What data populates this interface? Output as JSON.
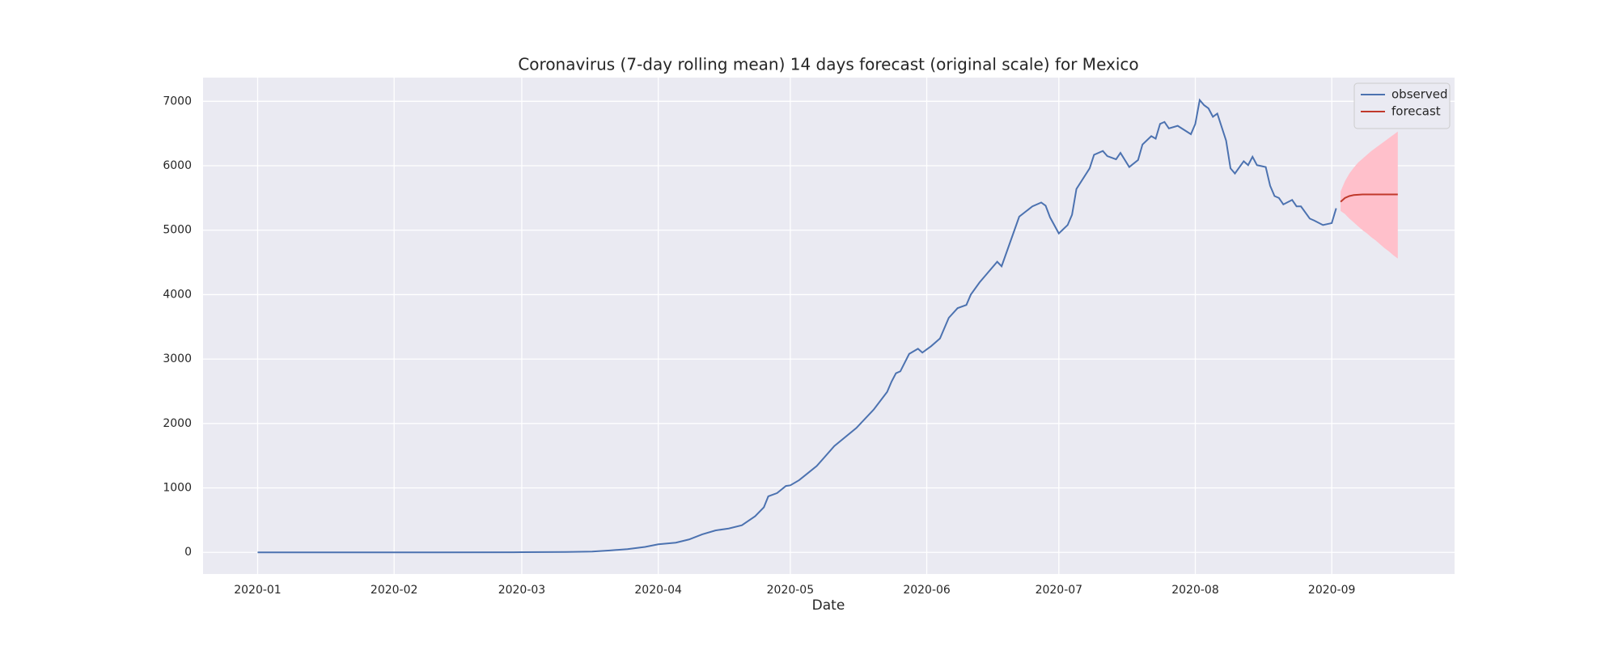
{
  "chart_data": {
    "type": "line",
    "title": "Coronavirus (7-day rolling mean) 14 days forecast (original scale) for Mexico",
    "x_label": "Date",
    "xlim": [
      -12.4,
      271.9
    ],
    "ylim": [
      -336,
      7368
    ],
    "xticks": [
      {
        "value": 0,
        "label": "2020-01"
      },
      {
        "value": 31,
        "label": "2020-02"
      },
      {
        "value": 60,
        "label": "2020-03"
      },
      {
        "value": 91,
        "label": "2020-04"
      },
      {
        "value": 121,
        "label": "2020-05"
      },
      {
        "value": 152,
        "label": "2020-06"
      },
      {
        "value": 182,
        "label": "2020-07"
      },
      {
        "value": 213,
        "label": "2020-08"
      },
      {
        "value": 244,
        "label": "2020-09"
      }
    ],
    "yticks": [
      0,
      1000,
      2000,
      3000,
      4000,
      5000,
      6000,
      7000
    ],
    "grid": true,
    "legend": "upper right",
    "series": [
      {
        "name": "observed",
        "color": "#4c72b0",
        "x": [
          0,
          40,
          60,
          70,
          76,
          80,
          84,
          88,
          91,
          95,
          98,
          101,
          104,
          107,
          110,
          113,
          115,
          116,
          118,
          120,
          121,
          123,
          125,
          127,
          131,
          136,
          140,
          143,
          144,
          145,
          146,
          148,
          150,
          151,
          153,
          155,
          157,
          159,
          161,
          162,
          164,
          166,
          168,
          169,
          173,
          176,
          178,
          179,
          180,
          182,
          184,
          185,
          186,
          189,
          190,
          192,
          193,
          195,
          196,
          198,
          200,
          201,
          203,
          204,
          205,
          206,
          207,
          209,
          212,
          213,
          214,
          215,
          216,
          217,
          218,
          220,
          221,
          222,
          224,
          225,
          226,
          227,
          229,
          230,
          231,
          232,
          233,
          235,
          236,
          237,
          239,
          240,
          242,
          244,
          245
        ],
        "values": [
          0,
          0,
          2,
          6,
          12,
          30,
          50,
          85,
          125,
          150,
          200,
          280,
          340,
          370,
          420,
          560,
          700,
          870,
          920,
          1030,
          1040,
          1120,
          1230,
          1340,
          1650,
          1930,
          2220,
          2490,
          2650,
          2780,
          2810,
          3080,
          3160,
          3100,
          3200,
          3320,
          3640,
          3790,
          3840,
          4000,
          4190,
          4350,
          4510,
          4440,
          5210,
          5370,
          5430,
          5380,
          5200,
          4950,
          5080,
          5240,
          5640,
          5960,
          6170,
          6230,
          6150,
          6100,
          6200,
          5980,
          6090,
          6330,
          6460,
          6420,
          6650,
          6680,
          6580,
          6620,
          6490,
          6650,
          7020,
          6940,
          6890,
          6760,
          6810,
          6390,
          5960,
          5880,
          6070,
          6010,
          6140,
          6010,
          5980,
          5690,
          5530,
          5500,
          5400,
          5470,
          5370,
          5370,
          5180,
          5150,
          5080,
          5110,
          5340
        ]
      },
      {
        "name": "forecast",
        "color": "#c0392b",
        "band_color": "pink",
        "x": [
          246,
          247,
          248,
          249,
          250,
          251,
          252,
          253,
          254,
          255,
          256,
          257,
          258,
          259
        ],
        "values": [
          5440,
          5500,
          5530,
          5545,
          5550,
          5555,
          5555,
          5555,
          5555,
          5555,
          5555,
          5555,
          5555,
          5555
        ],
        "lower": [
          5300,
          5250,
          5180,
          5120,
          5060,
          5000,
          4950,
          4890,
          4840,
          4780,
          4720,
          4670,
          4610,
          4560
        ],
        "upper": [
          5600,
          5760,
          5880,
          5970,
          6050,
          6110,
          6170,
          6230,
          6280,
          6330,
          6380,
          6430,
          6480,
          6530
        ]
      }
    ]
  }
}
